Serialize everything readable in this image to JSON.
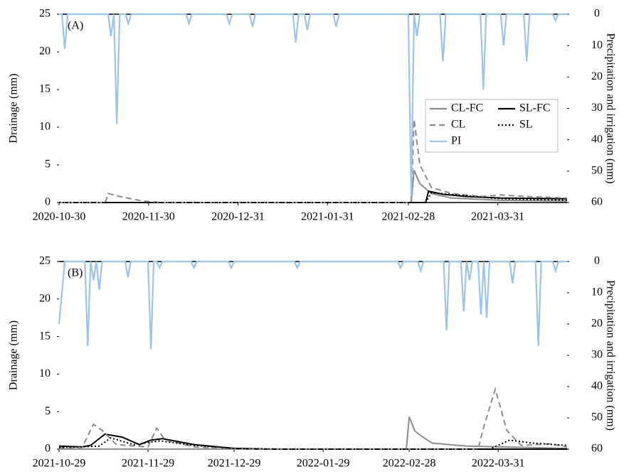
{
  "chart_data": [
    {
      "type": "line",
      "panel_label": "(A)",
      "ylabel": "Drainage (mm)",
      "y2label": "Precipitation and irrigation (mm)",
      "xlim": [
        "2020-10-30",
        "2021-04-24"
      ],
      "xticks": [
        "2020-10-30",
        "2020-11-30",
        "2020-12-31",
        "2021-01-31",
        "2021-02-28",
        "2021-03-31"
      ],
      "ylim": [
        0,
        25
      ],
      "yticks": [
        0,
        5,
        10,
        15,
        20,
        25
      ],
      "y2lim": [
        60,
        0
      ],
      "y2ticks": [
        0,
        10,
        20,
        30,
        40,
        50,
        60
      ],
      "legend": true,
      "series": [
        {
          "name": "CL-FC",
          "color": "#8c8c8c",
          "dash": "solid",
          "x": [
            "2020-10-30",
            "2021-03-01",
            "2021-03-02",
            "2021-03-04",
            "2021-03-08",
            "2021-03-15",
            "2021-04-01",
            "2021-04-24"
          ],
          "values": [
            0,
            0,
            4.3,
            2.5,
            1.2,
            0.6,
            0.3,
            0.2
          ]
        },
        {
          "name": "SL-FC",
          "color": "#000000",
          "dash": "solid",
          "x": [
            "2020-10-30",
            "2021-03-06",
            "2021-03-07",
            "2021-03-12",
            "2021-03-20",
            "2021-04-01",
            "2021-04-24"
          ],
          "values": [
            0,
            0,
            1.5,
            1.1,
            0.8,
            0.6,
            0.5
          ]
        },
        {
          "name": "CL",
          "color": "#8c8c8c",
          "dash": "dashed",
          "x": [
            "2020-10-30",
            "2020-11-15",
            "2020-11-16",
            "2020-11-20",
            "2020-11-28",
            "2020-12-05",
            "2021-03-01",
            "2021-03-02",
            "2021-03-04",
            "2021-03-08",
            "2021-03-15",
            "2021-03-25",
            "2021-04-01",
            "2021-04-10",
            "2021-04-24"
          ],
          "values": [
            0,
            0,
            1.2,
            0.8,
            0.2,
            0,
            0,
            11,
            5,
            2,
            1.2,
            0.8,
            1.0,
            0.8,
            0.6
          ]
        },
        {
          "name": "SL",
          "color": "#000000",
          "dash": "dotted",
          "x": [
            "2020-10-30",
            "2021-03-06",
            "2021-03-08",
            "2021-03-20",
            "2021-04-01",
            "2021-04-24"
          ],
          "values": [
            0,
            0,
            1.3,
            0.9,
            0.5,
            0.3
          ]
        },
        {
          "name": "PI",
          "color": "#9dc3e6",
          "dash": "solid",
          "axis": "y2",
          "x": [
            "2020-10-30",
            "2020-10-31",
            "2020-11-01",
            "2020-11-02",
            "2020-11-16",
            "2020-11-17",
            "2020-11-18",
            "2020-11-19",
            "2020-11-20",
            "2020-11-22",
            "2020-11-23",
            "2020-11-24",
            "2020-12-13",
            "2020-12-14",
            "2020-12-15",
            "2020-12-27",
            "2020-12-28",
            "2020-12-29",
            "2021-01-04",
            "2021-01-05",
            "2021-01-06",
            "2021-01-19",
            "2021-01-20",
            "2021-01-21",
            "2021-01-23",
            "2021-01-24",
            "2021-01-25",
            "2021-02-02",
            "2021-02-03",
            "2021-02-04",
            "2021-02-28",
            "2021-03-01",
            "2021-03-02",
            "2021-03-03",
            "2021-03-04",
            "2021-03-11",
            "2021-03-12",
            "2021-03-13",
            "2021-03-25",
            "2021-03-26",
            "2021-03-27",
            "2021-04-01",
            "2021-04-02",
            "2021-04-03",
            "2021-04-09",
            "2021-04-10",
            "2021-04-11",
            "2021-04-19",
            "2021-04-20",
            "2021-04-21",
            "2021-04-24"
          ],
          "values": [
            0,
            0,
            11,
            0,
            0,
            7,
            0,
            35,
            0,
            0,
            3,
            0,
            0,
            3,
            0,
            0,
            3,
            0,
            0,
            4,
            0,
            0,
            9,
            0,
            0,
            5,
            0,
            0,
            4,
            0,
            0,
            58,
            0,
            7,
            0,
            0,
            15,
            0,
            0,
            24,
            0,
            0,
            10,
            0,
            0,
            15,
            0,
            0,
            2,
            0,
            0
          ]
        }
      ]
    },
    {
      "type": "line",
      "panel_label": "(B)",
      "ylabel": "Drainage (mm)",
      "y2label": "Precipitation and irrigation (mm)",
      "xlim": [
        "2021-10-29",
        "2022-04-24"
      ],
      "xticks": [
        "2021-10-29",
        "2021-11-29",
        "2021-12-29",
        "2022-01-29",
        "2022-02-28",
        "2022-03-31"
      ],
      "ylim": [
        0,
        25
      ],
      "yticks": [
        0,
        5,
        10,
        15,
        20,
        25
      ],
      "y2lim": [
        60,
        0
      ],
      "y2ticks": [
        0,
        10,
        20,
        30,
        40,
        50,
        60
      ],
      "legend": false,
      "series": [
        {
          "color": "#8c8c8c",
          "dash": "solid",
          "x": [
            "2021-10-29",
            "2022-02-27",
            "2022-02-28",
            "2022-03-02",
            "2022-03-04",
            "2022-03-08",
            "2022-03-20",
            "2022-04-24"
          ],
          "values": [
            0,
            0,
            4.3,
            2.4,
            1.8,
            0.8,
            0.4,
            0.1
          ]
        },
        {
          "color": "#000000",
          "dash": "solid",
          "x": [
            "2021-10-29",
            "2021-11-06",
            "2021-11-09",
            "2021-11-14",
            "2021-11-20",
            "2021-11-26",
            "2021-11-30",
            "2021-12-04",
            "2021-12-15",
            "2021-12-29",
            "2022-01-10",
            "2022-04-24"
          ],
          "values": [
            0.4,
            0.3,
            0.5,
            2,
            1.6,
            0.6,
            1.2,
            1.4,
            0.6,
            0.1,
            0,
            0
          ]
        },
        {
          "color": "#8c8c8c",
          "dash": "dashed",
          "x": [
            "2021-10-29",
            "2021-11-06",
            "2021-11-10",
            "2021-11-13",
            "2021-11-18",
            "2021-11-29",
            "2021-12-02",
            "2021-12-05",
            "2021-12-15",
            "2021-12-29",
            "2022-03-24",
            "2022-03-26",
            "2022-03-30",
            "2022-04-03",
            "2022-04-08",
            "2022-04-18",
            "2022-04-24"
          ],
          "values": [
            0.2,
            0.2,
            3.3,
            2.5,
            0.6,
            0.3,
            2.8,
            1.2,
            0.3,
            0,
            0,
            3,
            8,
            2.5,
            0.5,
            0.7,
            0.3
          ]
        },
        {
          "color": "#000000",
          "dash": "dotted",
          "x": [
            "2021-10-29",
            "2021-11-12",
            "2021-11-16",
            "2021-11-24",
            "2021-12-03",
            "2021-12-15",
            "2021-12-29",
            "2022-01-15",
            "2022-03-28",
            "2022-04-04",
            "2022-04-12",
            "2022-04-24"
          ],
          "values": [
            0.2,
            0.4,
            1.5,
            0.6,
            1.1,
            0.5,
            0.1,
            0,
            0,
            1.2,
            0.8,
            0.5
          ]
        },
        {
          "color": "#9dc3e6",
          "dash": "solid",
          "axis": "y2",
          "x": [
            "2021-10-29",
            "2021-10-31",
            "2021-11-07",
            "2021-11-08",
            "2021-11-09",
            "2021-11-10",
            "2021-11-11",
            "2021-11-12",
            "2021-11-13",
            "2021-11-21",
            "2021-11-22",
            "2021-11-23",
            "2021-11-29",
            "2021-11-30",
            "2021-12-01",
            "2021-12-02",
            "2021-12-03",
            "2021-12-04",
            "2021-12-14",
            "2021-12-15",
            "2021-12-16",
            "2021-12-27",
            "2021-12-28",
            "2021-12-29",
            "2022-01-19",
            "2022-01-20",
            "2022-01-21",
            "2022-02-24",
            "2022-02-25",
            "2022-02-26",
            "2022-03-03",
            "2022-03-04",
            "2022-03-05",
            "2022-03-12",
            "2022-03-13",
            "2022-03-14",
            "2022-03-18",
            "2022-03-19",
            "2022-03-20",
            "2022-03-21",
            "2022-03-22",
            "2022-03-24",
            "2022-03-25",
            "2022-03-26",
            "2022-03-27",
            "2022-03-28",
            "2022-04-04",
            "2022-04-05",
            "2022-04-06",
            "2022-04-13",
            "2022-04-14",
            "2022-04-15",
            "2022-04-19",
            "2022-04-20",
            "2022-04-21",
            "2022-04-24"
          ],
          "values": [
            20,
            0,
            0,
            27,
            0,
            6,
            0,
            9,
            0,
            0,
            5,
            0,
            0,
            28,
            0,
            0,
            2,
            0,
            0,
            2,
            0,
            0,
            2,
            0,
            0,
            2,
            0,
            0,
            2,
            0,
            0,
            3,
            0,
            0,
            22,
            0,
            0,
            16,
            0,
            6,
            0,
            0,
            17,
            0,
            18,
            0,
            0,
            7,
            0,
            0,
            27,
            0,
            0,
            3,
            0,
            0
          ]
        }
      ]
    }
  ]
}
